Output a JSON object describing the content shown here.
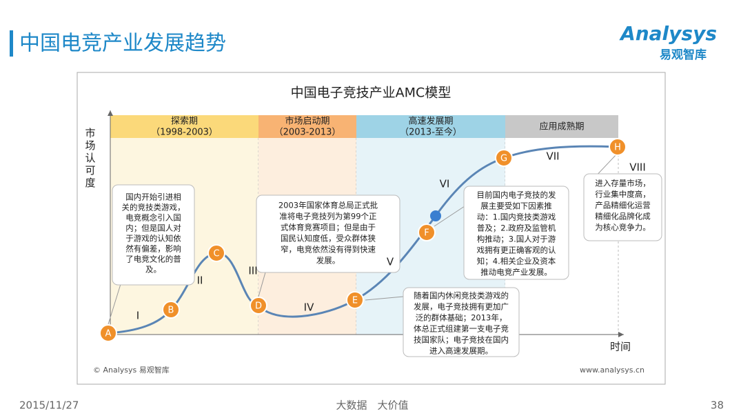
{
  "header": {
    "title": "中国电竞产业发展趋势"
  },
  "logo": {
    "brand": "Analysys",
    "subtitle": "易观智库"
  },
  "diagram": {
    "title": "中国电子竞技产业AMC模型",
    "y_label": "市场认可度",
    "x_label": "时间",
    "phases": [
      {
        "name": "探索期",
        "period": "（1998-2003）"
      },
      {
        "name": "市场启动期",
        "period": "（2003-2013）"
      },
      {
        "name": "高速发展期",
        "period": "（2013-至今）"
      },
      {
        "name": "应用成熟期"
      }
    ],
    "points": [
      "A",
      "B",
      "C",
      "D",
      "E",
      "F",
      "G",
      "H"
    ],
    "stages": [
      "I",
      "II",
      "III",
      "IV",
      "V",
      "VI",
      "VII",
      "VIII"
    ],
    "notes": [
      {
        "lines": [
          "国内开始引进相",
          "关的竞技类游戏，",
          "电竞概念引入国",
          "内；但是国人对",
          "于游戏的认知依",
          "然有偏差，影响",
          "了电竞文化的普",
          "及。"
        ]
      },
      {
        "lines": [
          "2003年国家体育总局正式批",
          "准将电子竞技列为第99个正",
          "式体育竞赛项目；但是由于",
          "国民认知度低，受众群体狭",
          "窄，电竞依然没有得到快速",
          "发展。"
        ]
      },
      {
        "lines": [
          "随着国内休闲竞技类游戏的",
          "发展，电子竞技拥有更加广",
          "泛的群体基础；2013年，",
          "体总正式组建第一支电子竞",
          "技国家队；电子竞技在国内",
          "进入高速发展期。"
        ]
      },
      {
        "lines": [
          "目前国内电子竞技的发",
          "展主要受如下因素推",
          "动：1.国内竞技类游戏",
          "普及；2.政府及监管机",
          "构推动；3.国人对于游",
          "戏拥有更正确客观的认",
          "知；4.相关企业及资本",
          "推动电竞产业发展。"
        ]
      },
      {
        "lines": [
          "进入存量市场，",
          "行业集中度高，",
          "产品精细化运营",
          "精细化品牌化成",
          "为核心竞争力。"
        ]
      }
    ],
    "copyright": "© Analysys 易观智库",
    "website": "www.analysys.cn"
  },
  "footer": {
    "date": "2015/11/27",
    "slogan": "大数据　大价值",
    "page": "38"
  }
}
